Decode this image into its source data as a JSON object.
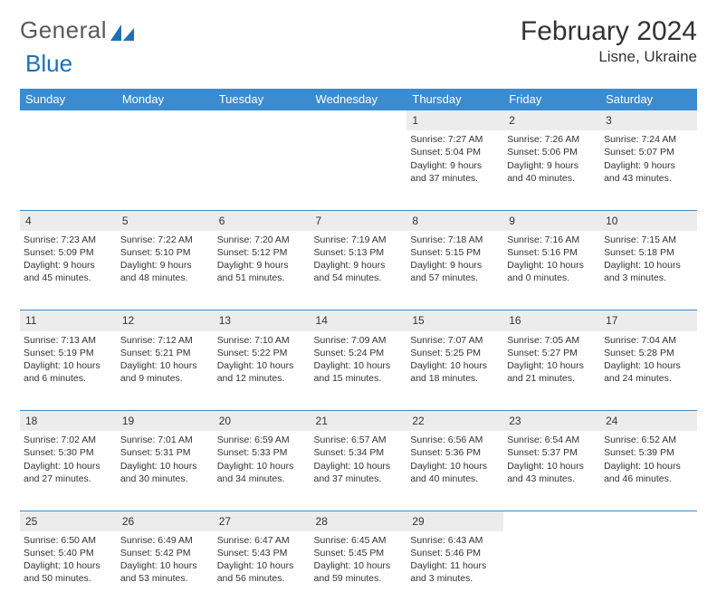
{
  "logo": {
    "textA": "General",
    "textB": "Blue"
  },
  "title": "February 2024",
  "location": "Lisne, Ukraine",
  "colors": {
    "headerBg": "#3b8bd0",
    "headerText": "#ffffff",
    "dayBg": "#ececec",
    "border": "#3b8bd0",
    "logoGray": "#5a5a5a",
    "logoBlue": "#1f6fb5"
  },
  "weekdays": [
    "Sunday",
    "Monday",
    "Tuesday",
    "Wednesday",
    "Thursday",
    "Friday",
    "Saturday"
  ],
  "weeks": [
    [
      null,
      null,
      null,
      null,
      {
        "n": "1",
        "sunrise": "7:27 AM",
        "sunset": "5:04 PM",
        "dlA": "Daylight: 9 hours",
        "dlB": "and 37 minutes."
      },
      {
        "n": "2",
        "sunrise": "7:26 AM",
        "sunset": "5:06 PM",
        "dlA": "Daylight: 9 hours",
        "dlB": "and 40 minutes."
      },
      {
        "n": "3",
        "sunrise": "7:24 AM",
        "sunset": "5:07 PM",
        "dlA": "Daylight: 9 hours",
        "dlB": "and 43 minutes."
      }
    ],
    [
      {
        "n": "4",
        "sunrise": "7:23 AM",
        "sunset": "5:09 PM",
        "dlA": "Daylight: 9 hours",
        "dlB": "and 45 minutes."
      },
      {
        "n": "5",
        "sunrise": "7:22 AM",
        "sunset": "5:10 PM",
        "dlA": "Daylight: 9 hours",
        "dlB": "and 48 minutes."
      },
      {
        "n": "6",
        "sunrise": "7:20 AM",
        "sunset": "5:12 PM",
        "dlA": "Daylight: 9 hours",
        "dlB": "and 51 minutes."
      },
      {
        "n": "7",
        "sunrise": "7:19 AM",
        "sunset": "5:13 PM",
        "dlA": "Daylight: 9 hours",
        "dlB": "and 54 minutes."
      },
      {
        "n": "8",
        "sunrise": "7:18 AM",
        "sunset": "5:15 PM",
        "dlA": "Daylight: 9 hours",
        "dlB": "and 57 minutes."
      },
      {
        "n": "9",
        "sunrise": "7:16 AM",
        "sunset": "5:16 PM",
        "dlA": "Daylight: 10 hours",
        "dlB": "and 0 minutes."
      },
      {
        "n": "10",
        "sunrise": "7:15 AM",
        "sunset": "5:18 PM",
        "dlA": "Daylight: 10 hours",
        "dlB": "and 3 minutes."
      }
    ],
    [
      {
        "n": "11",
        "sunrise": "7:13 AM",
        "sunset": "5:19 PM",
        "dlA": "Daylight: 10 hours",
        "dlB": "and 6 minutes."
      },
      {
        "n": "12",
        "sunrise": "7:12 AM",
        "sunset": "5:21 PM",
        "dlA": "Daylight: 10 hours",
        "dlB": "and 9 minutes."
      },
      {
        "n": "13",
        "sunrise": "7:10 AM",
        "sunset": "5:22 PM",
        "dlA": "Daylight: 10 hours",
        "dlB": "and 12 minutes."
      },
      {
        "n": "14",
        "sunrise": "7:09 AM",
        "sunset": "5:24 PM",
        "dlA": "Daylight: 10 hours",
        "dlB": "and 15 minutes."
      },
      {
        "n": "15",
        "sunrise": "7:07 AM",
        "sunset": "5:25 PM",
        "dlA": "Daylight: 10 hours",
        "dlB": "and 18 minutes."
      },
      {
        "n": "16",
        "sunrise": "7:05 AM",
        "sunset": "5:27 PM",
        "dlA": "Daylight: 10 hours",
        "dlB": "and 21 minutes."
      },
      {
        "n": "17",
        "sunrise": "7:04 AM",
        "sunset": "5:28 PM",
        "dlA": "Daylight: 10 hours",
        "dlB": "and 24 minutes."
      }
    ],
    [
      {
        "n": "18",
        "sunrise": "7:02 AM",
        "sunset": "5:30 PM",
        "dlA": "Daylight: 10 hours",
        "dlB": "and 27 minutes."
      },
      {
        "n": "19",
        "sunrise": "7:01 AM",
        "sunset": "5:31 PM",
        "dlA": "Daylight: 10 hours",
        "dlB": "and 30 minutes."
      },
      {
        "n": "20",
        "sunrise": "6:59 AM",
        "sunset": "5:33 PM",
        "dlA": "Daylight: 10 hours",
        "dlB": "and 34 minutes."
      },
      {
        "n": "21",
        "sunrise": "6:57 AM",
        "sunset": "5:34 PM",
        "dlA": "Daylight: 10 hours",
        "dlB": "and 37 minutes."
      },
      {
        "n": "22",
        "sunrise": "6:56 AM",
        "sunset": "5:36 PM",
        "dlA": "Daylight: 10 hours",
        "dlB": "and 40 minutes."
      },
      {
        "n": "23",
        "sunrise": "6:54 AM",
        "sunset": "5:37 PM",
        "dlA": "Daylight: 10 hours",
        "dlB": "and 43 minutes."
      },
      {
        "n": "24",
        "sunrise": "6:52 AM",
        "sunset": "5:39 PM",
        "dlA": "Daylight: 10 hours",
        "dlB": "and 46 minutes."
      }
    ],
    [
      {
        "n": "25",
        "sunrise": "6:50 AM",
        "sunset": "5:40 PM",
        "dlA": "Daylight: 10 hours",
        "dlB": "and 50 minutes."
      },
      {
        "n": "26",
        "sunrise": "6:49 AM",
        "sunset": "5:42 PM",
        "dlA": "Daylight: 10 hours",
        "dlB": "and 53 minutes."
      },
      {
        "n": "27",
        "sunrise": "6:47 AM",
        "sunset": "5:43 PM",
        "dlA": "Daylight: 10 hours",
        "dlB": "and 56 minutes."
      },
      {
        "n": "28",
        "sunrise": "6:45 AM",
        "sunset": "5:45 PM",
        "dlA": "Daylight: 10 hours",
        "dlB": "and 59 minutes."
      },
      {
        "n": "29",
        "sunrise": "6:43 AM",
        "sunset": "5:46 PM",
        "dlA": "Daylight: 11 hours",
        "dlB": "and 3 minutes."
      },
      null,
      null
    ]
  ]
}
